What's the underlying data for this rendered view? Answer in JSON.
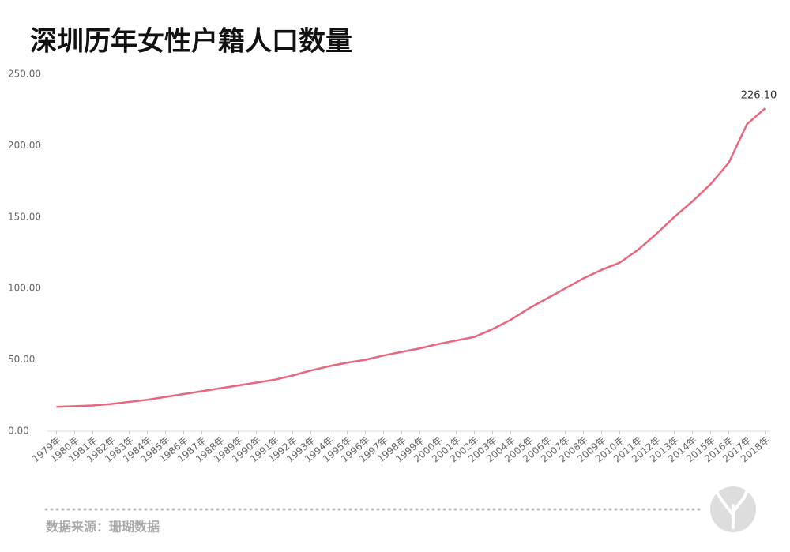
{
  "chart_data": {
    "type": "line",
    "title": "深圳历年女性户籍人口数量",
    "categories": [
      "1979年",
      "1980年",
      "1981年",
      "1982年",
      "1983年",
      "1984年",
      "1985年",
      "1986年",
      "1987年",
      "1988年",
      "1989年",
      "1990年",
      "1991年",
      "1992年",
      "1993年",
      "1994年",
      "1995年",
      "1996年",
      "1997年",
      "1998年",
      "1999年",
      "2000年",
      "2001年",
      "2002年",
      "2003年",
      "2004年",
      "2005年",
      "2006年",
      "2007年",
      "2008年",
      "2009年",
      "2010年",
      "2011年",
      "2012年",
      "2013年",
      "2014年",
      "2015年",
      "2016年",
      "2017年",
      "2018年"
    ],
    "values": [
      17,
      17.5,
      18,
      19,
      20.5,
      22,
      24,
      26,
      28,
      30,
      32,
      34,
      36,
      39,
      42.5,
      45.5,
      48,
      50,
      53,
      55.5,
      58,
      61,
      63.5,
      66,
      71.5,
      78,
      86,
      93,
      100,
      107,
      113,
      118,
      127,
      138,
      150,
      161,
      173,
      188,
      215,
      226.1
    ],
    "value_labels": [
      null,
      null,
      null,
      null,
      null,
      null,
      null,
      null,
      null,
      null,
      null,
      null,
      null,
      null,
      null,
      null,
      null,
      null,
      null,
      null,
      null,
      null,
      null,
      null,
      null,
      null,
      null,
      null,
      null,
      null,
      null,
      null,
      null,
      null,
      null,
      null,
      null,
      null,
      null,
      "226.10"
    ],
    "color": "#e9667c",
    "ylim": [
      0,
      250
    ],
    "yticks": [
      {
        "value": 0,
        "label": "0.00"
      },
      {
        "value": 50,
        "label": "50.00"
      },
      {
        "value": 100,
        "label": "100.00"
      },
      {
        "value": 150,
        "label": "150.00"
      },
      {
        "value": 200,
        "label": "200.00"
      },
      {
        "value": 250,
        "label": "250.00"
      }
    ],
    "grid": false,
    "source": "数据来源：珊瑚数据"
  }
}
